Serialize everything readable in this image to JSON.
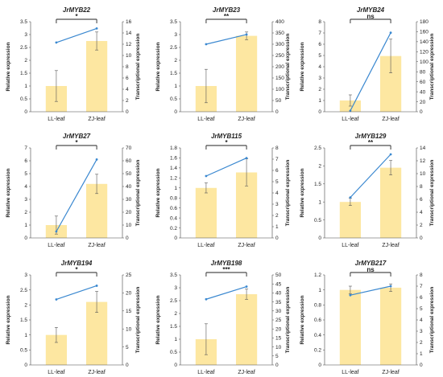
{
  "figure": {
    "left_axis_label": "Relative expression",
    "right_axis_label": "Transcriptional expression"
  },
  "colors": {
    "bar": "#fde7a1",
    "line": "#3a88d0",
    "error": "#555555",
    "axis": "#444444",
    "bracket": "#222222"
  },
  "chart_data": [
    {
      "type": "bar",
      "title": "JrMYB22",
      "categories": [
        "LL-leaf",
        "ZJ-leaf"
      ],
      "series": [
        {
          "axis": "left",
          "values": [
            1.0,
            2.75
          ],
          "errors": [
            0.6,
            0.35
          ]
        },
        {
          "axis": "right",
          "kind": "line",
          "values": [
            12.3,
            14.8
          ]
        }
      ],
      "ylabel": "Relative expression",
      "y2label": "Transcriptional expression",
      "ylim": [
        0,
        3.5
      ],
      "yticks": [
        "0",
        "0.5",
        "1",
        "1.5",
        "2",
        "2.5",
        "3",
        "3.5"
      ],
      "y2lim": [
        0,
        16
      ],
      "y2ticks": [
        "0",
        "2",
        "4",
        "6",
        "8",
        "10",
        "12",
        "14",
        "16"
      ],
      "significance": "*"
    },
    {
      "type": "bar",
      "title": "JrMYB23",
      "categories": [
        "LL-leaf",
        "ZJ-leaf"
      ],
      "series": [
        {
          "axis": "left",
          "values": [
            1.0,
            2.95
          ],
          "errors": [
            0.65,
            0.15
          ]
        },
        {
          "axis": "right",
          "kind": "line",
          "values": [
            300,
            343
          ]
        }
      ],
      "ylabel": "Relative expression",
      "y2label": "Transcriptional expression",
      "ylim": [
        0,
        3.5
      ],
      "yticks": [
        "0",
        "0.5",
        "1",
        "1.5",
        "2",
        "2.5",
        "3",
        "3.5"
      ],
      "y2lim": [
        0,
        400
      ],
      "y2ticks": [
        "0",
        "50",
        "100",
        "150",
        "200",
        "250",
        "300",
        "350",
        "400"
      ],
      "significance": "**"
    },
    {
      "type": "bar",
      "title": "JrMYB24",
      "categories": [
        "LL-leaf",
        "ZJ-leaf"
      ],
      "series": [
        {
          "axis": "left",
          "values": [
            1.0,
            4.95
          ],
          "errors": [
            0.5,
            1.5
          ]
        },
        {
          "axis": "right",
          "kind": "line",
          "values": [
            2,
            158
          ]
        }
      ],
      "ylabel": "Relative expression",
      "y2label": "Transcriptional expression",
      "ylim": [
        0,
        8
      ],
      "yticks": [
        "0",
        "1",
        "2",
        "3",
        "4",
        "5",
        "6",
        "7",
        "8"
      ],
      "y2lim": [
        0,
        180
      ],
      "y2ticks": [
        "0",
        "20",
        "40",
        "60",
        "80",
        "100",
        "120",
        "140",
        "160",
        "180"
      ],
      "significance": "ns"
    },
    {
      "type": "bar",
      "title": "JrMYB27",
      "categories": [
        "LL-leaf",
        "ZJ-leaf"
      ],
      "series": [
        {
          "axis": "left",
          "values": [
            1.0,
            4.2
          ],
          "errors": [
            0.7,
            0.75
          ]
        },
        {
          "axis": "right",
          "kind": "line",
          "values": [
            5,
            61
          ]
        }
      ],
      "ylabel": "Relative expression",
      "y2label": "Transcriptional expression",
      "ylim": [
        0,
        7
      ],
      "yticks": [
        "0",
        "1",
        "2",
        "3",
        "4",
        "5",
        "6",
        "7"
      ],
      "y2lim": [
        0,
        70
      ],
      "y2ticks": [
        "0",
        "10",
        "20",
        "30",
        "40",
        "50",
        "60",
        "70"
      ],
      "significance": "*"
    },
    {
      "type": "bar",
      "title": "JrMYB115",
      "categories": [
        "LL-leaf",
        "ZJ-leaf"
      ],
      "series": [
        {
          "axis": "left",
          "values": [
            1.0,
            1.31
          ],
          "errors": [
            0.1,
            0.27
          ]
        },
        {
          "axis": "right",
          "kind": "line",
          "values": [
            5.5,
            7.1
          ]
        }
      ],
      "ylabel": "Relative expression",
      "y2label": "Transcriptional expression",
      "ylim": [
        0,
        1.8
      ],
      "yticks": [
        "0",
        "0.2",
        "0.4",
        "0.6",
        "0.8",
        "1",
        "1.2",
        "1.4",
        "1.6",
        "1.8"
      ],
      "y2lim": [
        0,
        8
      ],
      "y2ticks": [
        "0",
        "1",
        "2",
        "3",
        "4",
        "5",
        "6",
        "7",
        "8"
      ],
      "significance": "*"
    },
    {
      "type": "bar",
      "title": "JrMYB129",
      "categories": [
        "LL-leaf",
        "ZJ-leaf"
      ],
      "series": [
        {
          "axis": "left",
          "values": [
            1.0,
            1.95
          ],
          "errors": [
            0.1,
            0.2
          ]
        },
        {
          "axis": "right",
          "kind": "line",
          "values": [
            6.3,
            13.0
          ]
        }
      ],
      "ylabel": "Relative expression",
      "y2label": "Transcriptional expression",
      "ylim": [
        0,
        2.5
      ],
      "yticks": [
        "0",
        "0.5",
        "1",
        "1.5",
        "2",
        "2.5"
      ],
      "y2lim": [
        0,
        14
      ],
      "y2ticks": [
        "0",
        "2",
        "4",
        "6",
        "8",
        "10",
        "12",
        "14"
      ],
      "significance": "**"
    },
    {
      "type": "bar",
      "title": "JrMYB194",
      "categories": [
        "LL-leaf",
        "ZJ-leaf"
      ],
      "series": [
        {
          "axis": "left",
          "values": [
            1.0,
            2.1
          ],
          "errors": [
            0.25,
            0.35
          ]
        },
        {
          "axis": "right",
          "kind": "line",
          "values": [
            18.2,
            22.0
          ]
        }
      ],
      "ylabel": "Relative expression",
      "y2label": "Transcriptional expression",
      "ylim": [
        0,
        3
      ],
      "yticks": [
        "0",
        "0.5",
        "1",
        "1.5",
        "2",
        "2.5",
        "3"
      ],
      "y2lim": [
        0,
        25
      ],
      "y2ticks": [
        "0",
        "5",
        "10",
        "15",
        "20",
        "25"
      ],
      "significance": "*"
    },
    {
      "type": "bar",
      "title": "JrMYB198",
      "categories": [
        "LL-leaf",
        "ZJ-leaf"
      ],
      "series": [
        {
          "axis": "left",
          "values": [
            1.0,
            2.75
          ],
          "errors": [
            0.6,
            0.2
          ]
        },
        {
          "axis": "right",
          "kind": "line",
          "values": [
            36.5,
            43.5
          ]
        }
      ],
      "ylabel": "Relative expression",
      "y2label": "Transcriptional expression",
      "ylim": [
        0,
        3.5
      ],
      "yticks": [
        "0",
        "0.5",
        "1",
        "1.5",
        "2",
        "2.5",
        "3",
        "3.5"
      ],
      "y2lim": [
        0,
        50
      ],
      "y2ticks": [
        "0",
        "5",
        "10",
        "15",
        "20",
        "25",
        "30",
        "35",
        "40",
        "45",
        "50"
      ],
      "significance": "***"
    },
    {
      "type": "bar",
      "title": "JrMYB217",
      "categories": [
        "LL-leaf",
        "ZJ-leaf"
      ],
      "series": [
        {
          "axis": "left",
          "values": [
            1.0,
            1.03
          ],
          "errors": [
            0.05,
            0.05
          ]
        },
        {
          "axis": "right",
          "kind": "line",
          "values": [
            6.2,
            7.0
          ]
        }
      ],
      "ylabel": "Relative expression",
      "y2label": "Transcriptional expression",
      "ylim": [
        0,
        1.2
      ],
      "yticks": [
        "0",
        "0.2",
        "0.4",
        "0.6",
        "0.8",
        "1",
        "1.2"
      ],
      "y2lim": [
        0,
        8
      ],
      "y2ticks": [
        "0",
        "1",
        "2",
        "3",
        "4",
        "5",
        "6",
        "7",
        "8"
      ],
      "significance": "ns"
    }
  ]
}
